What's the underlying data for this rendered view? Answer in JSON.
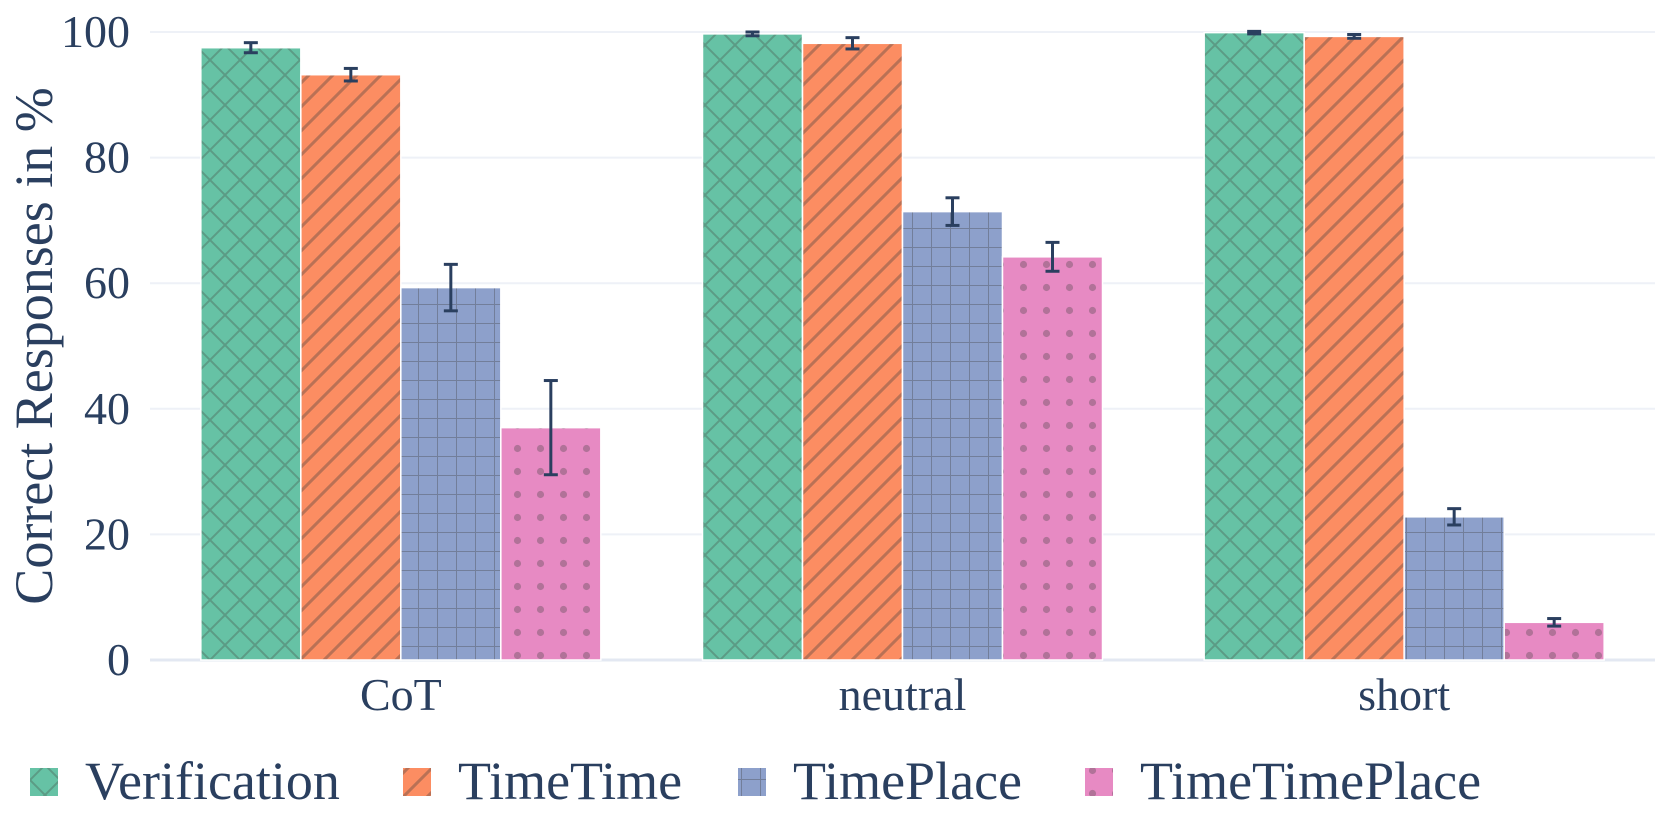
{
  "chart_data": {
    "type": "bar",
    "title": "",
    "xlabel": "",
    "ylabel": "Correct Responses in %",
    "ylim": [
      0,
      100
    ],
    "yticks": [
      0,
      20,
      40,
      60,
      80,
      100
    ],
    "grid": true,
    "legend_position": "bottom",
    "categories": [
      "CoT",
      "neutral",
      "short"
    ],
    "series": [
      {
        "name": "Verification",
        "color": "#66c2a5",
        "pattern": "crosshatch",
        "values": [
          97.5,
          99.7,
          99.9
        ],
        "error": [
          0.8,
          0.3,
          0.2
        ]
      },
      {
        "name": "TimeTime",
        "color": "#fc8d62",
        "pattern": "diagonal",
        "values": [
          93.2,
          98.2,
          99.3
        ],
        "error": [
          1.0,
          0.9,
          0.3
        ]
      },
      {
        "name": "TimePlace",
        "color": "#8da0cb",
        "pattern": "grid",
        "values": [
          59.3,
          71.4,
          22.8
        ],
        "error": [
          3.7,
          2.2,
          1.3
        ]
      },
      {
        "name": "TimeTimePlace",
        "color": "#e78ac3",
        "pattern": "dots",
        "values": [
          37.0,
          64.2,
          6.0
        ],
        "error": [
          7.5,
          2.3,
          0.6
        ]
      }
    ]
  }
}
